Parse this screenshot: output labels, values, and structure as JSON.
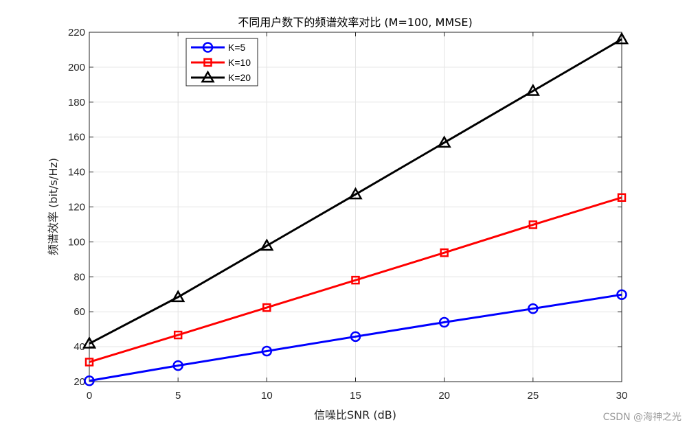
{
  "chart_data": {
    "type": "line",
    "title": "不同用户数下的频谱效率对比 (M=100, MMSE)",
    "xlabel": "信噪比SNR (dB)",
    "ylabel": "频谱效率 (bit/s/Hz)",
    "x": [
      0,
      5,
      10,
      15,
      20,
      25,
      30
    ],
    "xlim": [
      0,
      30
    ],
    "ylim": [
      20,
      220
    ],
    "xticks": [
      "0",
      "5",
      "10",
      "15",
      "20",
      "25",
      "30"
    ],
    "yticks": [
      "20",
      "40",
      "60",
      "80",
      "100",
      "120",
      "140",
      "160",
      "180",
      "200",
      "220"
    ],
    "grid": true,
    "legend_position": "top-left",
    "series": [
      {
        "name": "K=5",
        "color": "#0000ff",
        "marker": "circle",
        "values": [
          20.5,
          29.2,
          37.5,
          45.8,
          54.0,
          61.8,
          69.8
        ]
      },
      {
        "name": "K=10",
        "color": "#ff0000",
        "marker": "square",
        "values": [
          31.2,
          46.7,
          62.4,
          78.1,
          93.8,
          109.8,
          125.4
        ]
      },
      {
        "name": "K=20",
        "color": "#000000",
        "marker": "triangle",
        "values": [
          41.8,
          68.4,
          97.8,
          127.2,
          156.8,
          186.4,
          216.0
        ]
      }
    ]
  },
  "watermark": "CSDN @海神之光"
}
